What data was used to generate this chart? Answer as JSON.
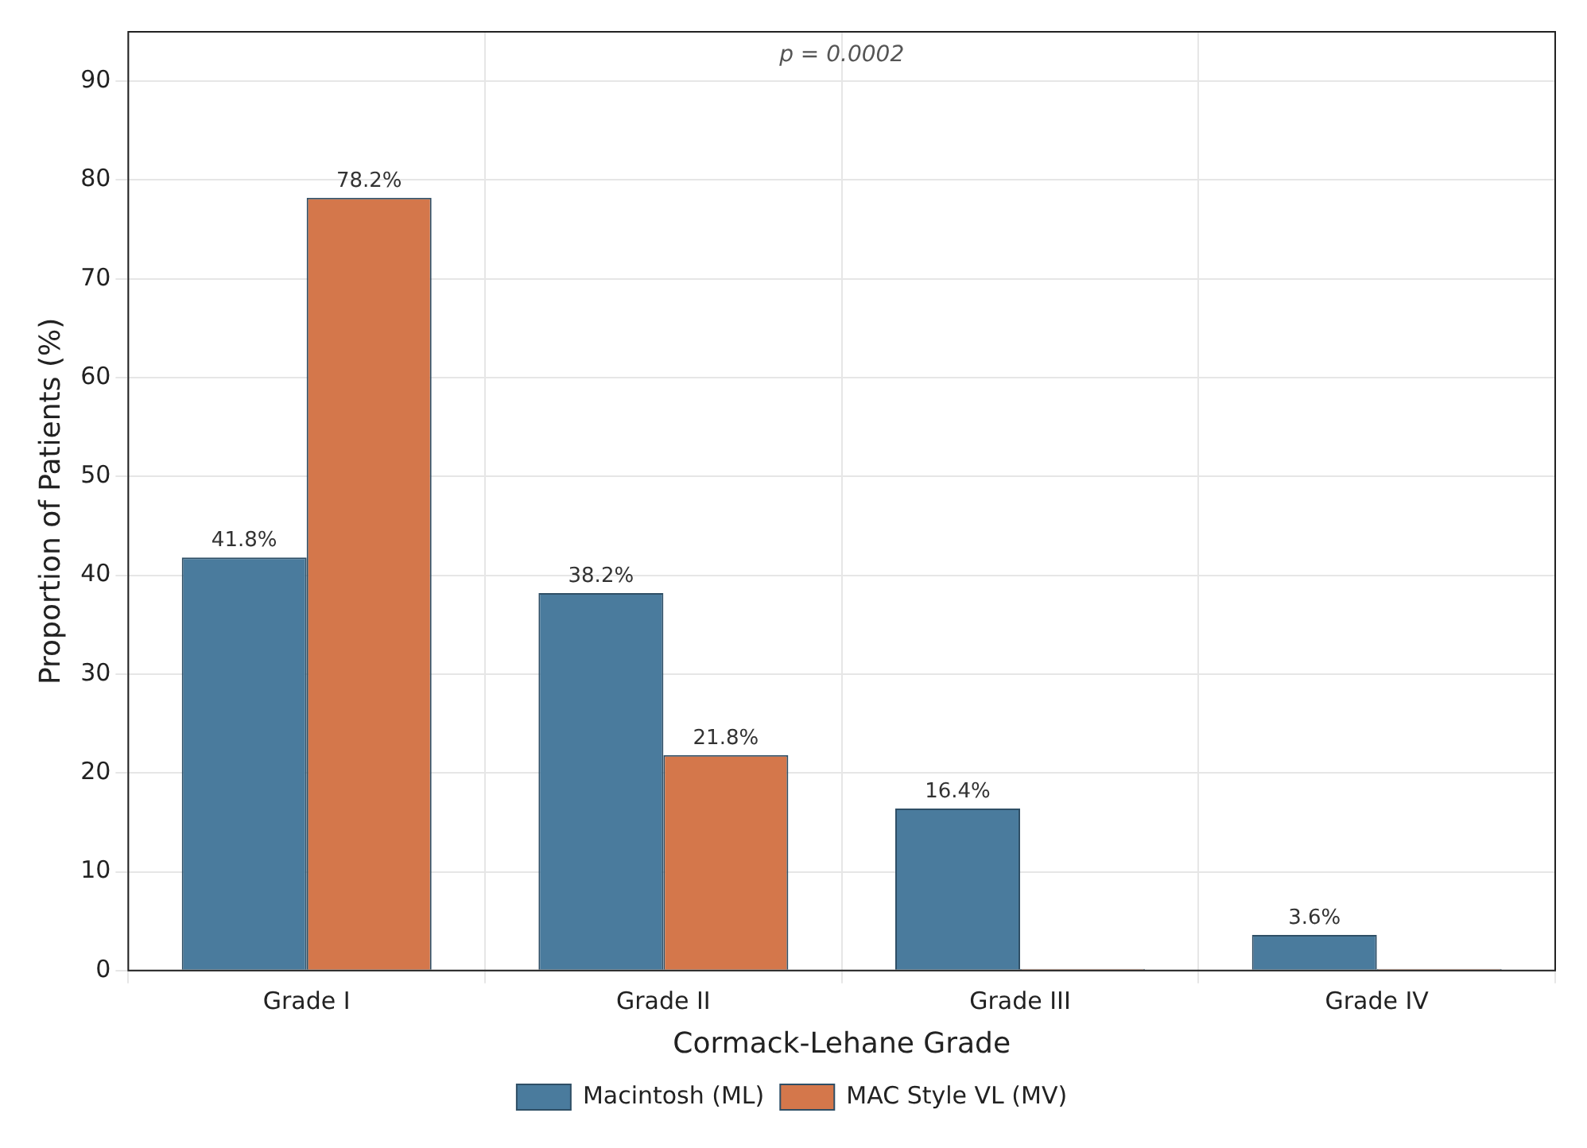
{
  "chart_data": {
    "type": "bar",
    "xlabel": "Cormack-Lehane Grade",
    "ylabel": "Proportion of Patients (%)",
    "categories": [
      "Grade I",
      "Grade II",
      "Grade III",
      "Grade IV"
    ],
    "series": [
      {
        "name": "Macintosh (ML)",
        "color": "#4a7b9d",
        "values": [
          41.8,
          38.2,
          16.4,
          3.6
        ],
        "value_labels": [
          "41.8%",
          "38.2%",
          "16.4%",
          "3.6%"
        ]
      },
      {
        "name": "MAC Style VL (MV)",
        "color": "#d4774b",
        "values": [
          78.2,
          21.8,
          0,
          0
        ],
        "value_labels": [
          "78.2%",
          "21.8%",
          null,
          null
        ]
      }
    ],
    "ylim": [
      0,
      95
    ],
    "yticks": [
      0,
      10,
      20,
      30,
      40,
      50,
      60,
      70,
      80,
      90
    ],
    "grid": true,
    "legend": "bottom",
    "annotations": [
      "p = 0.0002"
    ]
  }
}
